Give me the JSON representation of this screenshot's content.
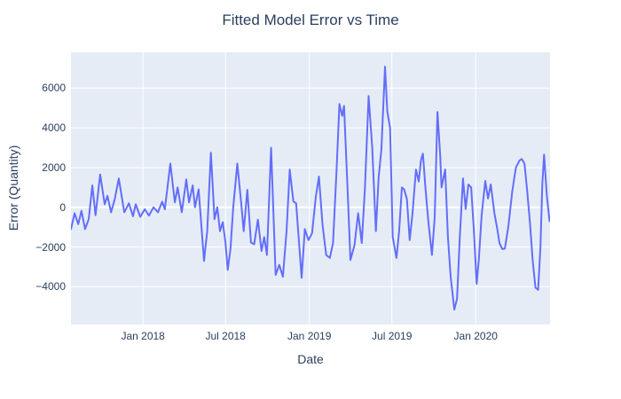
{
  "colors": {
    "line": "#636efa",
    "plot_bg": "#e5ecf6",
    "grid": "#ffffff",
    "text": "#2a3f5f",
    "paper": "#ffffff"
  },
  "chart_data": {
    "type": "line",
    "title": "Fitted Model Error vs Time",
    "xlabel": "Date",
    "ylabel": "Error (Quantity)",
    "x_range": [
      "2017-07-27",
      "2020-06-12"
    ],
    "y_range": [
      -5900,
      7800
    ],
    "grid": true,
    "legend": false,
    "x_ticks": [
      {
        "date": "2018-01-01",
        "label": "Jan 2018"
      },
      {
        "date": "2018-07-01",
        "label": "Jul 2018"
      },
      {
        "date": "2019-01-01",
        "label": "Jan 2019"
      },
      {
        "date": "2019-07-01",
        "label": "Jul 2019"
      },
      {
        "date": "2020-01-01",
        "label": "Jan 2020"
      }
    ],
    "y_ticks": [
      {
        "value": 6000,
        "label": "6000"
      },
      {
        "value": 4000,
        "label": "4000"
      },
      {
        "value": 2000,
        "label": "2000"
      },
      {
        "value": 0,
        "label": "0"
      },
      {
        "value": -2000,
        "label": "−2000"
      },
      {
        "value": -4000,
        "label": "−4000"
      }
    ],
    "series": [
      {
        "color": "#636efa",
        "points": [
          [
            "2017-07-27",
            -1100
          ],
          [
            "2017-08-04",
            -300
          ],
          [
            "2017-08-12",
            -850
          ],
          [
            "2017-08-19",
            -180
          ],
          [
            "2017-08-27",
            -1100
          ],
          [
            "2017-09-04",
            -600
          ],
          [
            "2017-09-12",
            1100
          ],
          [
            "2017-09-19",
            -400
          ],
          [
            "2017-09-29",
            1650
          ],
          [
            "2017-10-09",
            150
          ],
          [
            "2017-10-15",
            580
          ],
          [
            "2017-10-23",
            -250
          ],
          [
            "2017-10-31",
            400
          ],
          [
            "2017-11-09",
            1450
          ],
          [
            "2017-11-21",
            -250
          ],
          [
            "2017-12-01",
            200
          ],
          [
            "2017-12-10",
            -450
          ],
          [
            "2017-12-16",
            150
          ],
          [
            "2017-12-26",
            -480
          ],
          [
            "2018-01-05",
            -100
          ],
          [
            "2018-01-14",
            -420
          ],
          [
            "2018-01-24",
            0
          ],
          [
            "2018-02-03",
            -250
          ],
          [
            "2018-02-12",
            280
          ],
          [
            "2018-02-18",
            -100
          ],
          [
            "2018-03-02",
            2200
          ],
          [
            "2018-03-12",
            250
          ],
          [
            "2018-03-18",
            1000
          ],
          [
            "2018-03-27",
            -250
          ],
          [
            "2018-04-06",
            1400
          ],
          [
            "2018-04-12",
            250
          ],
          [
            "2018-04-20",
            1100
          ],
          [
            "2018-04-25",
            0
          ],
          [
            "2018-05-03",
            900
          ],
          [
            "2018-05-15",
            -2700
          ],
          [
            "2018-05-22",
            -1200
          ],
          [
            "2018-05-30",
            2750
          ],
          [
            "2018-06-07",
            -600
          ],
          [
            "2018-06-13",
            0
          ],
          [
            "2018-06-19",
            -1200
          ],
          [
            "2018-06-25",
            -750
          ],
          [
            "2018-07-01",
            -1800
          ],
          [
            "2018-07-06",
            -3150
          ],
          [
            "2018-07-12",
            -2100
          ],
          [
            "2018-07-18",
            0
          ],
          [
            "2018-07-27",
            2200
          ],
          [
            "2018-08-04",
            350
          ],
          [
            "2018-08-10",
            -1200
          ],
          [
            "2018-08-18",
            880
          ],
          [
            "2018-08-26",
            -1770
          ],
          [
            "2018-09-02",
            -1860
          ],
          [
            "2018-09-10",
            -620
          ],
          [
            "2018-09-18",
            -2200
          ],
          [
            "2018-09-24",
            -1500
          ],
          [
            "2018-09-30",
            -2400
          ],
          [
            "2018-10-09",
            3000
          ],
          [
            "2018-10-19",
            -3400
          ],
          [
            "2018-10-27",
            -2900
          ],
          [
            "2018-11-04",
            -3500
          ],
          [
            "2018-11-12",
            -1200
          ],
          [
            "2018-11-19",
            1900
          ],
          [
            "2018-11-27",
            300
          ],
          [
            "2018-12-03",
            200
          ],
          [
            "2018-12-15",
            -3550
          ],
          [
            "2018-12-22",
            -1100
          ],
          [
            "2018-12-30",
            -1650
          ],
          [
            "2019-01-07",
            -1300
          ],
          [
            "2019-01-15",
            500
          ],
          [
            "2019-01-22",
            1550
          ],
          [
            "2019-01-30",
            -900
          ],
          [
            "2019-02-07",
            -2400
          ],
          [
            "2019-02-15",
            -2550
          ],
          [
            "2019-02-22",
            -1800
          ],
          [
            "2019-03-02",
            2000
          ],
          [
            "2019-03-08",
            5200
          ],
          [
            "2019-03-14",
            4600
          ],
          [
            "2019-03-18",
            5100
          ],
          [
            "2019-03-26",
            800
          ],
          [
            "2019-04-01",
            -2650
          ],
          [
            "2019-04-10",
            -1900
          ],
          [
            "2019-04-18",
            -300
          ],
          [
            "2019-04-26",
            -1800
          ],
          [
            "2019-05-03",
            1000
          ],
          [
            "2019-05-11",
            5600
          ],
          [
            "2019-05-19",
            3000
          ],
          [
            "2019-05-27",
            -1200
          ],
          [
            "2019-06-02",
            1500
          ],
          [
            "2019-06-08",
            2900
          ],
          [
            "2019-06-16",
            7080
          ],
          [
            "2019-06-21",
            4800
          ],
          [
            "2019-06-27",
            4000
          ],
          [
            "2019-07-03",
            -1500
          ],
          [
            "2019-07-11",
            -2550
          ],
          [
            "2019-07-17",
            -1200
          ],
          [
            "2019-07-23",
            1000
          ],
          [
            "2019-07-28",
            900
          ],
          [
            "2019-08-03",
            400
          ],
          [
            "2019-08-09",
            -1650
          ],
          [
            "2019-08-15",
            -400
          ],
          [
            "2019-08-23",
            1900
          ],
          [
            "2019-08-29",
            1300
          ],
          [
            "2019-09-03",
            2400
          ],
          [
            "2019-09-07",
            2700
          ],
          [
            "2019-09-13",
            900
          ],
          [
            "2019-09-19",
            -700
          ],
          [
            "2019-09-27",
            -2400
          ],
          [
            "2019-10-03",
            -500
          ],
          [
            "2019-10-09",
            4800
          ],
          [
            "2019-10-15",
            2600
          ],
          [
            "2019-10-18",
            1000
          ],
          [
            "2019-10-26",
            1900
          ],
          [
            "2019-11-01",
            -1500
          ],
          [
            "2019-11-07",
            -3500
          ],
          [
            "2019-11-15",
            -5150
          ],
          [
            "2019-11-21",
            -4600
          ],
          [
            "2019-11-27",
            -1500
          ],
          [
            "2019-12-04",
            1450
          ],
          [
            "2019-12-10",
            -90
          ],
          [
            "2019-12-16",
            1150
          ],
          [
            "2019-12-22",
            1000
          ],
          [
            "2019-12-28",
            -1200
          ],
          [
            "2020-01-03",
            -3850
          ],
          [
            "2020-01-08",
            -2600
          ],
          [
            "2020-01-14",
            -400
          ],
          [
            "2020-01-22",
            1330
          ],
          [
            "2020-01-28",
            440
          ],
          [
            "2020-02-03",
            1150
          ],
          [
            "2020-02-11",
            -300
          ],
          [
            "2020-02-17",
            -1060
          ],
          [
            "2020-02-22",
            -1800
          ],
          [
            "2020-02-28",
            -2100
          ],
          [
            "2020-03-05",
            -2080
          ],
          [
            "2020-03-13",
            -900
          ],
          [
            "2020-03-21",
            800
          ],
          [
            "2020-03-29",
            2000
          ],
          [
            "2020-04-06",
            2350
          ],
          [
            "2020-04-11",
            2430
          ],
          [
            "2020-04-17",
            2200
          ],
          [
            "2020-04-23",
            800
          ],
          [
            "2020-04-29",
            -800
          ],
          [
            "2020-05-05",
            -2700
          ],
          [
            "2020-05-11",
            -4050
          ],
          [
            "2020-05-17",
            -4150
          ],
          [
            "2020-05-22",
            -2000
          ],
          [
            "2020-05-26",
            1150
          ],
          [
            "2020-05-30",
            2650
          ],
          [
            "2020-06-05",
            580
          ],
          [
            "2020-06-11",
            -700
          ]
        ]
      }
    ]
  }
}
